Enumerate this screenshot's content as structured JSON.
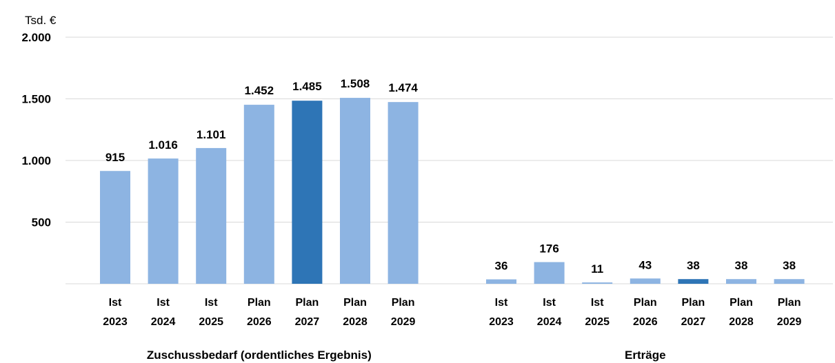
{
  "chart_data": {
    "type": "bar",
    "unit_label": "Tsd. €",
    "y_ticks": [
      {
        "value": 500,
        "label": "500"
      },
      {
        "value": 1000,
        "label": "1.000"
      },
      {
        "value": 1500,
        "label": "1.500"
      },
      {
        "value": 2000,
        "label": "2.000"
      }
    ],
    "ylim": [
      0,
      2000
    ],
    "grid": true,
    "colors": {
      "regular": "#8db4e2",
      "highlight": "#2e75b6"
    },
    "highlight_index": 4,
    "groups": [
      {
        "label": "Zuschussbedarf (ordentliches Ergebnis)",
        "categories": [
          {
            "line1": "Ist",
            "line2": "2023"
          },
          {
            "line1": "Ist",
            "line2": "2024"
          },
          {
            "line1": "Ist",
            "line2": "2025"
          },
          {
            "line1": "Plan",
            "line2": "2026"
          },
          {
            "line1": "Plan",
            "line2": "2027"
          },
          {
            "line1": "Plan",
            "line2": "2028"
          },
          {
            "line1": "Plan",
            "line2": "2029"
          }
        ],
        "values": [
          915,
          1016,
          1101,
          1452,
          1485,
          1508,
          1474
        ],
        "value_labels": [
          "915",
          "1.016",
          "1.101",
          "1.452",
          "1.485",
          "1.508",
          "1.474"
        ]
      },
      {
        "label": "Erträge",
        "categories": [
          {
            "line1": "Ist",
            "line2": "2023"
          },
          {
            "line1": "Ist",
            "line2": "2024"
          },
          {
            "line1": "Ist",
            "line2": "2025"
          },
          {
            "line1": "Plan",
            "line2": "2026"
          },
          {
            "line1": "Plan",
            "line2": "2027"
          },
          {
            "line1": "Plan",
            "line2": "2028"
          },
          {
            "line1": "Plan",
            "line2": "2029"
          }
        ],
        "values": [
          36,
          176,
          11,
          43,
          38,
          38,
          38
        ],
        "value_labels": [
          "36",
          "176",
          "11",
          "43",
          "38",
          "38",
          "38"
        ]
      }
    ]
  }
}
